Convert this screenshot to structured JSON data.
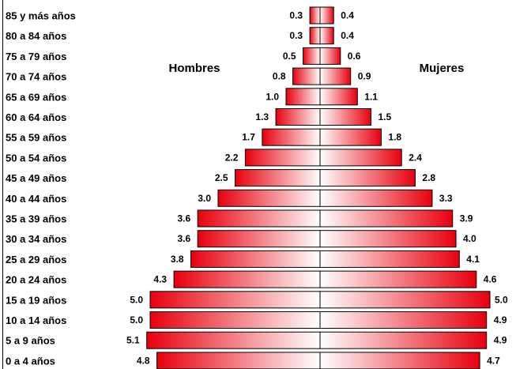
{
  "chart_data": {
    "type": "bar",
    "orientation": "horizontal",
    "categories": [
      "85 y más años",
      "80 a 84 años",
      "75 a 79 años",
      "70 a 74 años",
      "65 a 69 años",
      "60 a 64 años",
      "55 a 59 años",
      "50 a 54 años",
      "45 a 49 años",
      "40 a 44 años",
      "35 a 39 años",
      "30 a 34 años",
      "25 a 29 años",
      "20 a 24 años",
      "15 a 19 años",
      "10 a 14 años",
      "5 a 9 años",
      "0 a 4 años"
    ],
    "series": [
      {
        "name": "Hombres",
        "values": [
          0.3,
          0.3,
          0.5,
          0.8,
          1.0,
          1.3,
          1.7,
          2.2,
          2.5,
          3.0,
          3.6,
          3.6,
          3.8,
          4.3,
          5.0,
          5.0,
          5.1,
          4.8
        ]
      },
      {
        "name": "Mujeres",
        "values": [
          0.4,
          0.4,
          0.6,
          0.9,
          1.1,
          1.5,
          1.8,
          2.4,
          2.8,
          3.3,
          3.9,
          4.0,
          4.1,
          4.6,
          5.0,
          4.9,
          4.9,
          4.7
        ]
      }
    ],
    "value_labels": {
      "Hombres": [
        "0.3",
        "0.3",
        "0.5",
        "0.8",
        "1.0",
        "1.3",
        "1.7",
        "2.2",
        "2.5",
        "3.0",
        "3.6",
        "3.6",
        "3.8",
        "4.3",
        "5.0",
        "5.0",
        "5.1",
        "4.8"
      ],
      "Mujeres": [
        "0.4",
        "0.4",
        "0.6",
        "0.9",
        "1.1",
        "1.5",
        "1.8",
        "2.4",
        "2.8",
        "3.3",
        "3.9",
        "4.0",
        "4.1",
        "4.6",
        "5.0",
        "4.9",
        "4.9",
        "4.7"
      ]
    },
    "title": "",
    "xlabel": "",
    "ylabel": "",
    "colors": {
      "bar_dark": "#e8000e",
      "bar_light": "#ffffff",
      "bar_border": "#000000"
    },
    "grid": false,
    "legend": "none"
  }
}
